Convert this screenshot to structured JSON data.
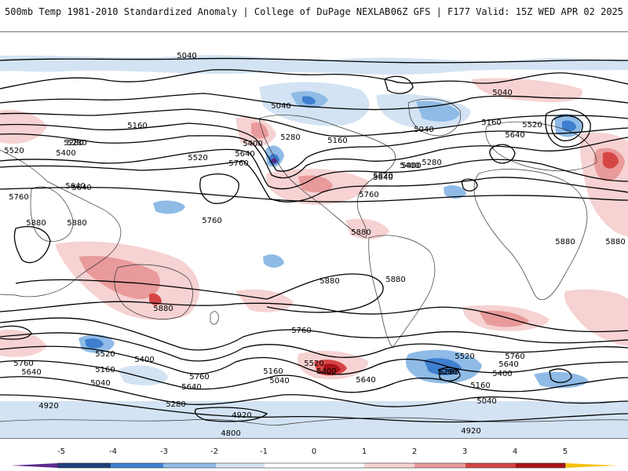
{
  "header": {
    "title": "500mb Temp 1981-2010 Standardized Anomaly | College of DuPage NEXLAB",
    "run_info": "06Z GFS | F177 Valid: 15Z WED APR 02 2025"
  },
  "colors": {
    "contour": "#000000",
    "coastline": "#333333",
    "anom_neg_5": "#5b2c8c",
    "anom_neg_4": "#1f3f7a",
    "anom_neg_3": "#3f7fd0",
    "anom_neg_2": "#8fbbe6",
    "anom_neg_1": "#d3e3f3",
    "anom_zero": "#ffffff",
    "anom_pos_1": "#f6d2d2",
    "anom_pos_2": "#e99a9a",
    "anom_pos_3": "#d64545",
    "anom_pos_4": "#a8141a",
    "anom_pos_5": "#6e0a0e",
    "anom_pos_max": "#f3c20e"
  },
  "map": {
    "contour_labels": [
      {
        "text": "5040"
      },
      {
        "text": "5040"
      },
      {
        "text": "5040"
      },
      {
        "text": "5040"
      },
      {
        "text": "5160"
      },
      {
        "text": "5160"
      },
      {
        "text": "5160"
      },
      {
        "text": "5280"
      },
      {
        "text": "5280"
      },
      {
        "text": "5280"
      },
      {
        "text": "5520"
      },
      {
        "text": "5400"
      },
      {
        "text": "5520"
      },
      {
        "text": "5640"
      },
      {
        "text": "5400"
      },
      {
        "text": "5760"
      },
      {
        "text": "5520"
      },
      {
        "text": "5400"
      },
      {
        "text": "5640"
      },
      {
        "text": "5280"
      },
      {
        "text": "5400"
      },
      {
        "text": "5640"
      },
      {
        "text": "5520"
      },
      {
        "text": "5640"
      },
      {
        "text": "5760"
      },
      {
        "text": "5760"
      },
      {
        "text": "5640"
      },
      {
        "text": "5880"
      },
      {
        "text": "5880"
      },
      {
        "text": "5760"
      },
      {
        "text": "5880"
      },
      {
        "text": "5880"
      },
      {
        "text": "5880"
      },
      {
        "text": "5880"
      },
      {
        "text": "5760"
      },
      {
        "text": "5880"
      },
      {
        "text": "5880"
      },
      {
        "text": "5520"
      },
      {
        "text": "5400"
      },
      {
        "text": "5160"
      },
      {
        "text": "5040"
      },
      {
        "text": "5760"
      },
      {
        "text": "5640"
      },
      {
        "text": "5760"
      },
      {
        "text": "5640"
      },
      {
        "text": "5160"
      },
      {
        "text": "5040"
      },
      {
        "text": "5520"
      },
      {
        "text": "5400"
      },
      {
        "text": "5640"
      },
      {
        "text": "5280"
      },
      {
        "text": "4920"
      },
      {
        "text": "5280"
      },
      {
        "text": "4920"
      },
      {
        "text": "4800"
      },
      {
        "text": "5520"
      },
      {
        "text": "5760"
      },
      {
        "text": "5640"
      },
      {
        "text": "5400"
      },
      {
        "text": "5280"
      },
      {
        "text": "5160"
      },
      {
        "text": "5040"
      },
      {
        "text": "4920"
      }
    ]
  },
  "colorbar": {
    "ticks": [
      "-5",
      "-4",
      "-3",
      "-2",
      "-1",
      "0",
      "1",
      "2",
      "3",
      "4",
      "5"
    ]
  }
}
